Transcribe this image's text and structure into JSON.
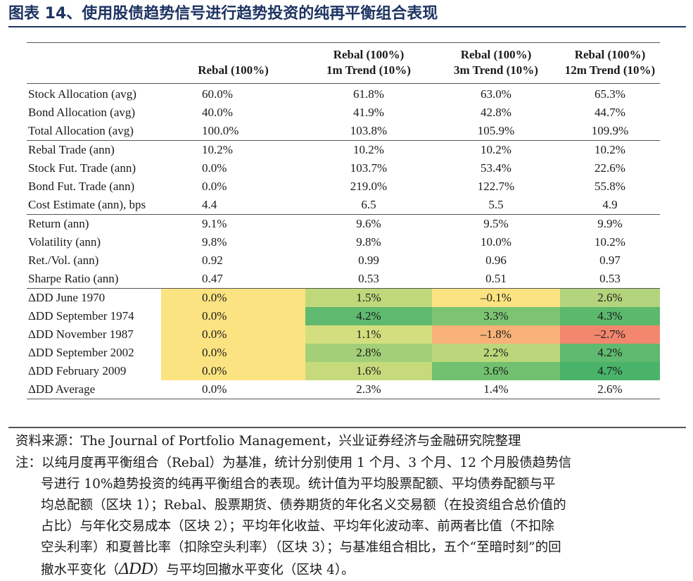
{
  "figure": {
    "title": "图表 14、使用股债趋势信号进行趋势投资的纯再平衡组合表现",
    "header_color": "#1e3462"
  },
  "table": {
    "columns": [
      {
        "line1": "",
        "line2": ""
      },
      {
        "line1": "",
        "line2": "Rebal (100%)"
      },
      {
        "line1": "Rebal (100%)",
        "line2": "1m Trend (10%)"
      },
      {
        "line1": "Rebal (100%)",
        "line2": "3m Trend (10%)"
      },
      {
        "line1": "Rebal (100%)",
        "line2": "12m Trend (10%)"
      }
    ],
    "rows": [
      {
        "label": "Stock Allocation (avg)",
        "values": [
          "60.0%",
          "61.8%",
          "63.0%",
          "65.3%"
        ]
      },
      {
        "label": "Bond Allocation (avg)",
        "values": [
          "40.0%",
          "41.9%",
          "42.8%",
          "44.7%"
        ]
      },
      {
        "label": "Total Allocation (avg)",
        "values": [
          "100.0%",
          "103.8%",
          "105.9%",
          "109.9%"
        ]
      },
      {
        "label": "Rebal Trade (ann)",
        "values": [
          "10.2%",
          "10.2%",
          "10.2%",
          "10.2%"
        ]
      },
      {
        "label": "Stock Fut. Trade (ann)",
        "values": [
          "0.0%",
          "103.7%",
          "53.4%",
          "22.6%"
        ]
      },
      {
        "label": "Bond Fut. Trade (ann)",
        "values": [
          "0.0%",
          "219.0%",
          "122.7%",
          "55.8%"
        ]
      },
      {
        "label": "Cost Estimate (ann), bps",
        "values": [
          "4.4",
          "6.5",
          "5.5",
          "4.9"
        ]
      },
      {
        "label": "Return (ann)",
        "values": [
          "9.1%",
          "9.6%",
          "9.5%",
          "9.9%"
        ]
      },
      {
        "label": "Volatility (ann)",
        "values": [
          "9.8%",
          "9.8%",
          "10.0%",
          "10.2%"
        ]
      },
      {
        "label": "Ret./Vol. (ann)",
        "values": [
          "0.92",
          "0.99",
          "0.96",
          "0.97"
        ]
      },
      {
        "label": "Sharpe Ratio (ann)",
        "values": [
          "0.47",
          "0.53",
          "0.51",
          "0.53"
        ]
      },
      {
        "label": "ΔDD June 1970",
        "values": [
          "0.0%",
          "1.5%",
          "–0.1%",
          "2.6%"
        ],
        "colors": [
          "#fbe381",
          "#bfd87a",
          "#fbe381",
          "#b3d47c"
        ]
      },
      {
        "label": "ΔDD September 1974",
        "values": [
          "0.0%",
          "4.2%",
          "3.3%",
          "4.3%"
        ],
        "colors": [
          "#fbe381",
          "#5fb96e",
          "#7cc472",
          "#5cb86d"
        ]
      },
      {
        "label": "ΔDD November 1987",
        "values": [
          "0.0%",
          "1.1%",
          "–1.8%",
          "–2.7%"
        ],
        "colors": [
          "#fbe381",
          "#d3df7f",
          "#f8b277",
          "#f2876d"
        ]
      },
      {
        "label": "ΔDD September 2002",
        "values": [
          "0.0%",
          "2.8%",
          "2.2%",
          "4.2%"
        ],
        "colors": [
          "#fbe381",
          "#a3cf79",
          "#bcd77b",
          "#5fb96e"
        ]
      },
      {
        "label": "ΔDD February 2009",
        "values": [
          "0.0%",
          "1.6%",
          "3.6%",
          "4.7%"
        ],
        "colors": [
          "#fbe381",
          "#c6da7b",
          "#72c170",
          "#4ab36a"
        ]
      },
      {
        "label": "ΔDD Average",
        "values": [
          "0.0%",
          "2.3%",
          "1.4%",
          "2.6%"
        ]
      }
    ]
  },
  "source": "资料来源：The Journal of Portfolio Management，兴业证券经济与金融研究院整理",
  "note": {
    "line1": "注：以纯月度再平衡组合（Rebal）为基准，统计分别使用 1 个月、3 个月、12 个月股债趋势信",
    "line2": "号进行 10%趋势投资的纯再平衡组合的表现。统计值为平均股票配额、平均债券配额与平",
    "line3": "均总配额（区块 1）；Rebal、股票期货、债券期货的年化名义交易额（在投资组合总价值的",
    "line4": "占比）与年化交易成本（区块 2）；平均年化收益、平均年化波动率、前两者比值（不扣除",
    "line5": "空头利率）和夏普比率（扣除空头利率）（区块 3）；与基准组合相比，五个“至暗时刻”的回",
    "line6_a": "撤水平变化（",
    "line6_delta": "ΔDD",
    "line6_b": "）与平均回撤水平变化（区块 4）。"
  }
}
